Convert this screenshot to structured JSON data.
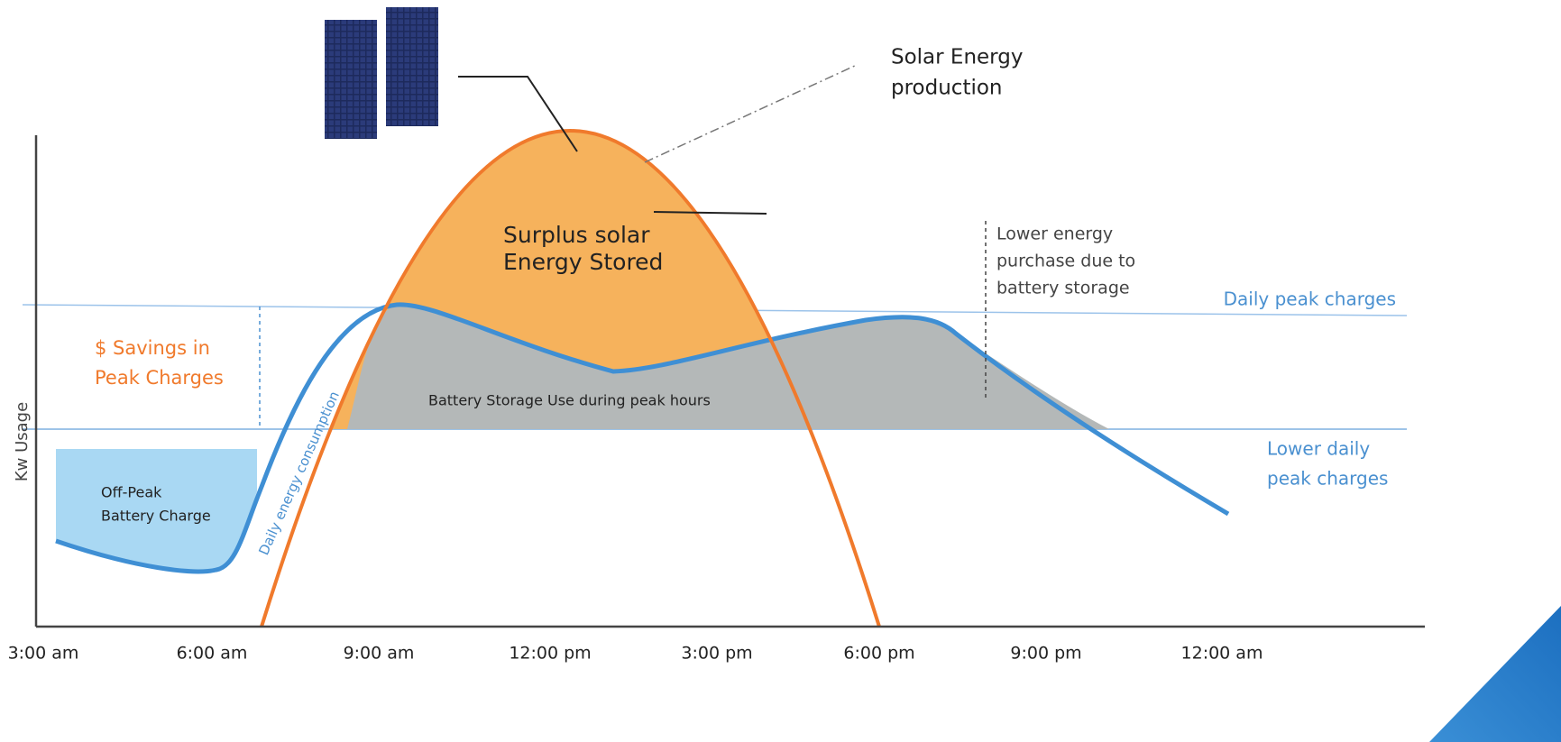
{
  "solar_label": [
    "Solar Energy",
    "production"
  ],
  "surplus_label": [
    "Surplus solar",
    "Energy Stored"
  ],
  "battery_use_label": "Battery Storage Use during peak hours",
  "savings_label": [
    "$ Savings in",
    "Peak Charges"
  ],
  "off_peak_label": [
    "Off-Peak",
    "Battery Charge"
  ],
  "consumption_label": "Daily energy consumption",
  "lower_purchase_label": [
    "Lower energy",
    "purchase due to",
    "battery storage"
  ],
  "daily_peak_label": "Daily peak charges",
  "lower_peak_label": [
    "Lower daily",
    "peak charges"
  ],
  "y_axis_label": "Kw Usage",
  "x_axis_labels": [
    "3:00 am",
    "6:00 am",
    "9:00 am",
    "12:00 pm",
    "3:00 pm",
    "6:00 pm",
    "9:00 pm",
    "12:00 am"
  ]
}
